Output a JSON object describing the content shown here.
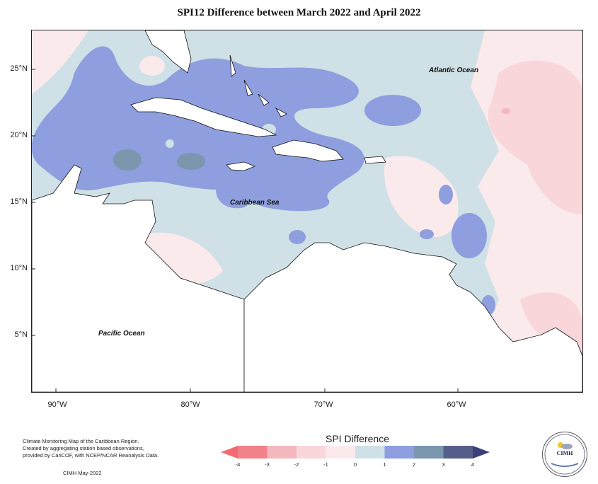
{
  "title": "SPI12 Difference between March 2022 and April 2022",
  "map": {
    "lat_ticks": [
      "25°N",
      "20°N",
      "15°N",
      "10°N",
      "5°N"
    ],
    "lon_ticks": [
      "90°W",
      "80°W",
      "70°W",
      "60°W"
    ],
    "ocean_labels": {
      "atlantic": "Atlantic Ocean",
      "caribbean": "Caribbean Sea",
      "pacific": "Pacific Ocean"
    },
    "extent": {
      "lon": [
        -92,
        -51
      ],
      "lat": [
        1.5,
        28.5
      ]
    }
  },
  "legend": {
    "title": "SPI Difference",
    "ticks": [
      "-4",
      "-3",
      "-2",
      "-1",
      "0",
      "1",
      "2",
      "3",
      "4"
    ],
    "colors": [
      "#f2828a",
      "#f2b8bd",
      "#f8d6da",
      "#fbeaec",
      "#cfe0e6",
      "#8e9ede",
      "#7a97ad",
      "#565f8a"
    ],
    "under_color": "#f26a72",
    "over_color": "#3b3f78"
  },
  "credit": {
    "lines": [
      "Climate Monitoring Map of the Caribbean Region.",
      "Created by aggregating station based observations,",
      "provided by CariCOF, with NCEP/NCAR Reanalysis Data."
    ],
    "date": "CIMH May-2022"
  },
  "logo": {
    "text": "CIMH"
  }
}
